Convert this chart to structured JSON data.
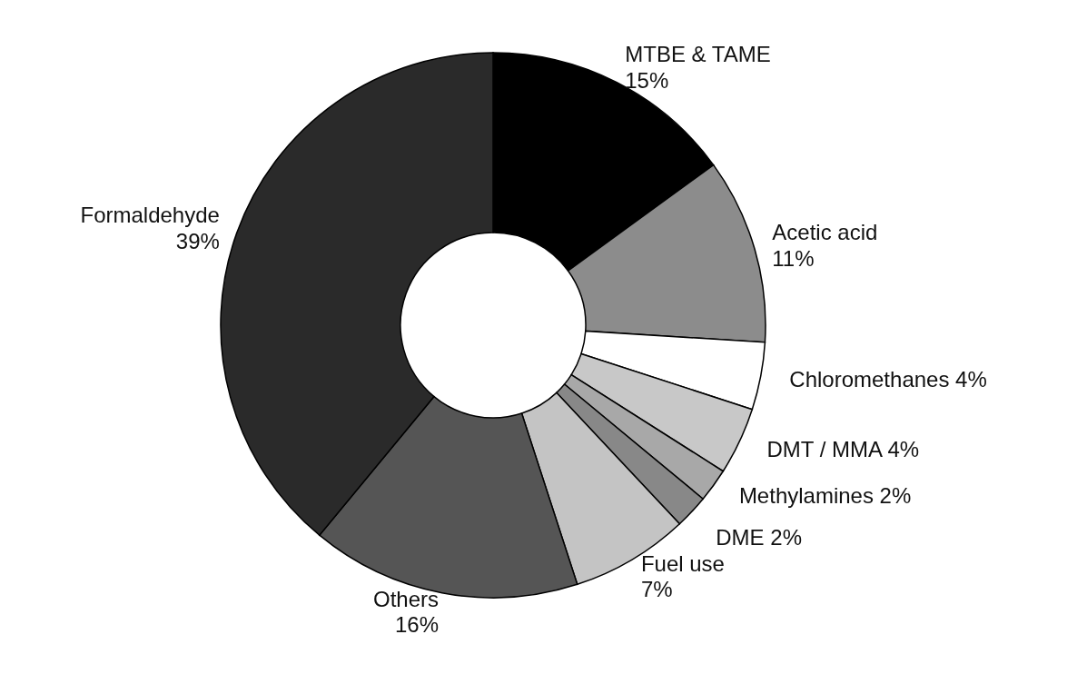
{
  "chart_data": {
    "type": "donut",
    "categories": [
      "MTBE & TAME",
      "Acetic acid",
      "Chloromethanes",
      "DMT / MMA",
      "Methylamines",
      "DME",
      "Fuel use",
      "Others",
      "Formaldehyde"
    ],
    "values": [
      15,
      11,
      4,
      4,
      2,
      2,
      7,
      16,
      39
    ],
    "value_labels": [
      "15%",
      "11%",
      "4%",
      "4%",
      "2%",
      "2%",
      "7%",
      "16%",
      "39%"
    ],
    "colors": [
      "#000000",
      "#8c8c8c",
      "#ffffff",
      "#c8c8c8",
      "#a8a8a8",
      "#888888",
      "#c4c4c4",
      "#555555",
      "#2a2a2a"
    ]
  }
}
